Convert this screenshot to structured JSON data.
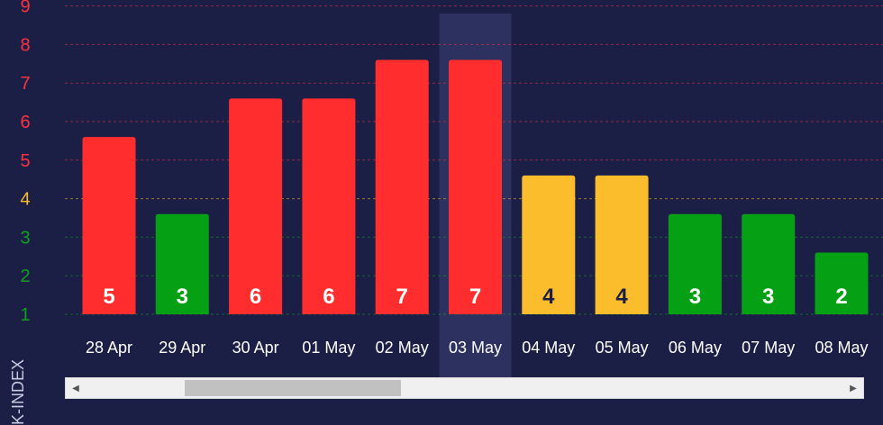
{
  "chart_data": {
    "type": "bar",
    "categories": [
      "28 Apr",
      "29 Apr",
      "30 Apr",
      "01 May",
      "02 May",
      "03 May",
      "04 May",
      "05 May",
      "06 May",
      "07 May",
      "08 May"
    ],
    "values": [
      5,
      3,
      6,
      6,
      7,
      7,
      4,
      4,
      3,
      3,
      2
    ],
    "bar_colors": [
      "#ff2d2d",
      "#06a014",
      "#ff2d2d",
      "#ff2d2d",
      "#ff2d2d",
      "#ff2d2d",
      "#fbbd2c",
      "#fbbd2c",
      "#06a014",
      "#06a014",
      "#06a014"
    ],
    "label_colors": [
      "#ffffff",
      "#ffffff",
      "#ffffff",
      "#ffffff",
      "#ffffff",
      "#ffffff",
      "#1b1f45",
      "#1b1f45",
      "#ffffff",
      "#ffffff",
      "#ffffff"
    ],
    "ylim": [
      1,
      9
    ],
    "yticks": [
      1,
      2,
      3,
      4,
      5,
      6,
      7,
      8,
      9
    ],
    "ytick_colors": [
      "#10a020",
      "#10a020",
      "#10a020",
      "#fbbd2c",
      "#ff3040",
      "#ff3040",
      "#ff3040",
      "#ff3040",
      "#ff3040"
    ],
    "ylabel": "K-INDEX",
    "grid": true,
    "highlighted_category": "03 May",
    "colors": {
      "background": "#1b1f45",
      "red": "#ff2d2d",
      "yellow": "#fbbd2c",
      "green": "#06a014"
    }
  },
  "scrollbar": {
    "left_arrow": "◀",
    "right_arrow": "▶"
  }
}
